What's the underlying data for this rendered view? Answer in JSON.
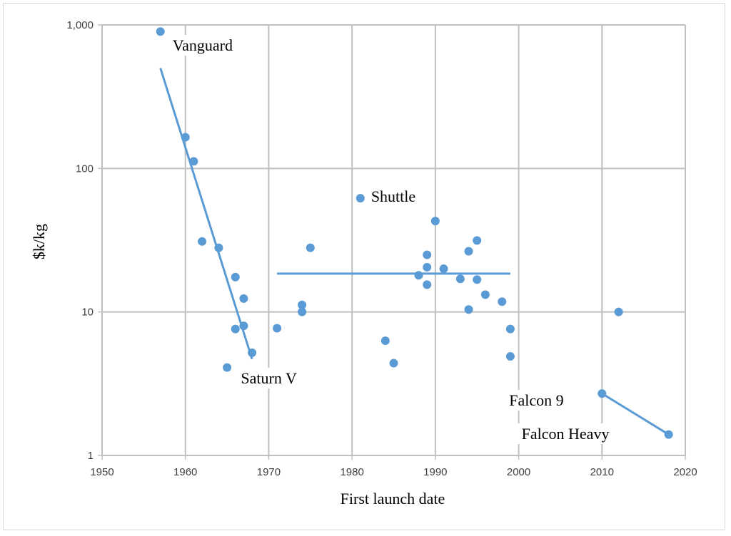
{
  "chart_data": {
    "type": "scatter",
    "title": "",
    "xlabel": "First launch date",
    "ylabel": "$k/kg",
    "xlim": [
      1950,
      2020
    ],
    "ylim": [
      1,
      1000
    ],
    "yscale": "log",
    "grid": true,
    "x_ticks": [
      1950,
      1960,
      1970,
      1980,
      1990,
      2000,
      2010,
      2020
    ],
    "y_ticks": [
      {
        "value": 1,
        "label": "1"
      },
      {
        "value": 10,
        "label": "10"
      },
      {
        "value": 100,
        "label": "100"
      },
      {
        "value": 1000,
        "label": "1,000"
      }
    ],
    "color": "#5b9bd5",
    "points": [
      {
        "x": 1957,
        "y": 900
      },
      {
        "x": 1960,
        "y": 165
      },
      {
        "x": 1961,
        "y": 112
      },
      {
        "x": 1962,
        "y": 31
      },
      {
        "x": 1964,
        "y": 28
      },
      {
        "x": 1965,
        "y": 4.1
      },
      {
        "x": 1966,
        "y": 17.5
      },
      {
        "x": 1966,
        "y": 7.6
      },
      {
        "x": 1967,
        "y": 12.4
      },
      {
        "x": 1967,
        "y": 8.0
      },
      {
        "x": 1968,
        "y": 5.2
      },
      {
        "x": 1971,
        "y": 7.7
      },
      {
        "x": 1974,
        "y": 11.2
      },
      {
        "x": 1974,
        "y": 10.0
      },
      {
        "x": 1975,
        "y": 28
      },
      {
        "x": 1981,
        "y": 62
      },
      {
        "x": 1984,
        "y": 6.3
      },
      {
        "x": 1985,
        "y": 4.4
      },
      {
        "x": 1988,
        "y": 18
      },
      {
        "x": 1989,
        "y": 25
      },
      {
        "x": 1989,
        "y": 20.5
      },
      {
        "x": 1989,
        "y": 15.5
      },
      {
        "x": 1990,
        "y": 43
      },
      {
        "x": 1991,
        "y": 20
      },
      {
        "x": 1993,
        "y": 17
      },
      {
        "x": 1994,
        "y": 26.5
      },
      {
        "x": 1994,
        "y": 10.4
      },
      {
        "x": 1995,
        "y": 31.5
      },
      {
        "x": 1995,
        "y": 16.8
      },
      {
        "x": 1996,
        "y": 13.2
      },
      {
        "x": 1998,
        "y": 11.8
      },
      {
        "x": 1999,
        "y": 7.6
      },
      {
        "x": 1999,
        "y": 4.9
      },
      {
        "x": 2010,
        "y": 2.7
      },
      {
        "x": 2012,
        "y": 10.0
      },
      {
        "x": 2018,
        "y": 1.4
      }
    ],
    "trend_lines": [
      {
        "x": [
          1957,
          1968
        ],
        "y": [
          500,
          4.7
        ]
      },
      {
        "x": [
          1971,
          1999
        ],
        "y": [
          18.5,
          18.5
        ]
      },
      {
        "x": [
          2010,
          2018
        ],
        "y": [
          2.7,
          1.4
        ]
      }
    ],
    "annotations": [
      {
        "text": "Vanguard",
        "x": 1957
      },
      {
        "text": "Shuttle",
        "x": 1981
      },
      {
        "text": "Saturn V",
        "x": 1967
      },
      {
        "text": "Falcon 9",
        "x": 2010
      },
      {
        "text": "Falcon Heavy",
        "x": 2018
      }
    ]
  }
}
